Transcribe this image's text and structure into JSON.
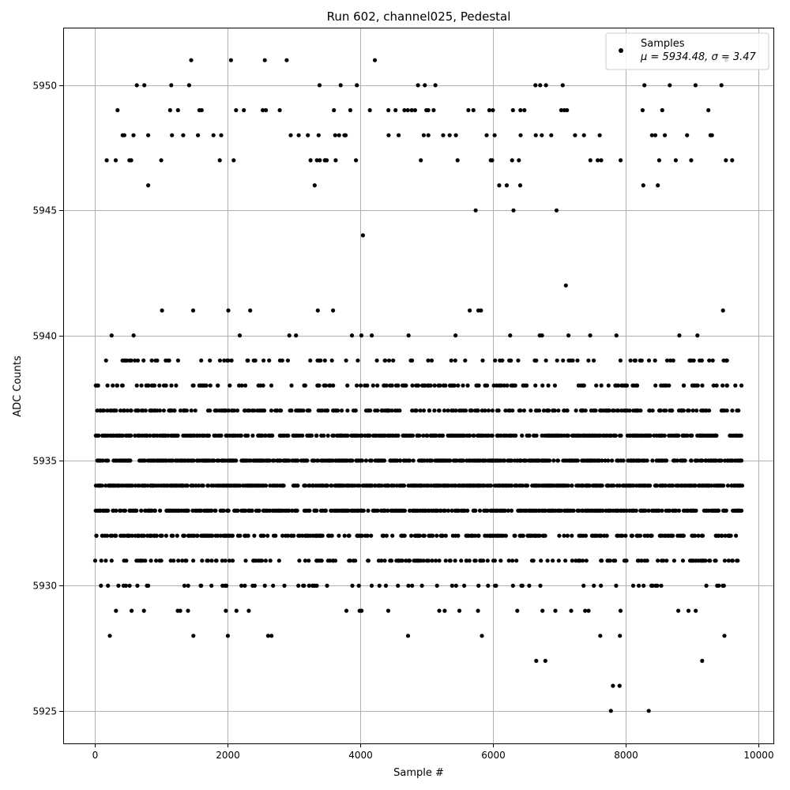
{
  "chart_data": {
    "type": "scatter",
    "title": "Run 602, channel025, Pedestal",
    "xlabel": "Sample #",
    "ylabel": "ADC Counts",
    "xlim": [
      -480,
      10230
    ],
    "ylim": [
      5923.7,
      5952.3
    ],
    "xticks": [
      0,
      2000,
      4000,
      6000,
      8000,
      10000
    ],
    "yticks": [
      5925,
      5930,
      5935,
      5940,
      5945,
      5950
    ],
    "grid": true,
    "legend": {
      "position": "top-right",
      "label": "Samples",
      "stats": "μ = 5934.48, σ = 3.47"
    },
    "marker_color": "#000000",
    "series": [
      {
        "name": "Samples",
        "n_points": 9750,
        "mean": 5934.48,
        "std": 3.47,
        "level_density": {
          "5925": 0.0003,
          "5926": 0.0004,
          "5927": 0.004,
          "5928": 0.01,
          "5929": 0.035,
          "5930": 0.09,
          "5931": 0.16,
          "5932": 0.26,
          "5933": 0.38,
          "5934": 0.46,
          "5935": 0.44,
          "5936": 0.36,
          "5937": 0.25,
          "5938": 0.15,
          "5939": 0.09,
          "5940": 0.025,
          "5941": 0.002,
          "5942": 0.0002,
          "5944": 0.0002,
          "5945": 0.0006,
          "5946": 0.006,
          "5947": 0.025,
          "5948": 0.05,
          "5949": 0.03,
          "5950": 0.02,
          "5951": 0.002
        },
        "outliers": [
          [
            7780,
            5925
          ],
          [
            8350,
            5925
          ],
          [
            7810,
            5926
          ],
          [
            7910,
            5926
          ],
          [
            4040,
            5944
          ],
          [
            5740,
            5945
          ],
          [
            6310,
            5945
          ],
          [
            6960,
            5945
          ],
          [
            7100,
            5942
          ],
          [
            1450,
            5951
          ],
          [
            2050,
            5951
          ],
          [
            2560,
            5951
          ],
          [
            2890,
            5951
          ],
          [
            4220,
            5951
          ],
          [
            9520,
            5951
          ],
          [
            1010,
            5941
          ],
          [
            1480,
            5941
          ],
          [
            2010,
            5941
          ],
          [
            2340,
            5941
          ],
          [
            3360,
            5941
          ],
          [
            3590,
            5941
          ],
          [
            5650,
            5941
          ],
          [
            5780,
            5941
          ],
          [
            5820,
            5941
          ],
          [
            9470,
            5941
          ]
        ]
      }
    ]
  }
}
